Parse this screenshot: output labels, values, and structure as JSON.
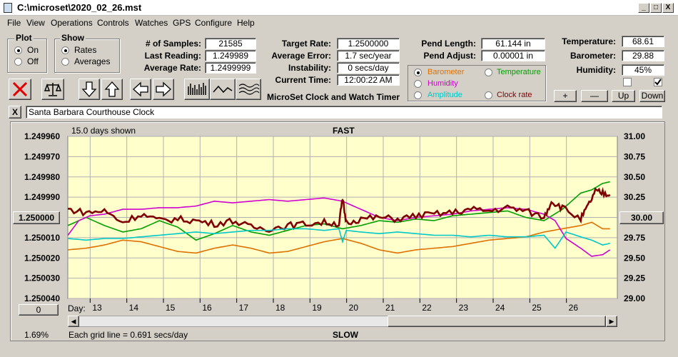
{
  "window": {
    "title": "C:\\microset\\2020_02_26.mst",
    "min_label": "_",
    "max_label": "□",
    "close_label": "X"
  },
  "menu": [
    "File",
    "View",
    "Operations",
    "Controls",
    "Watches",
    "GPS",
    "Configure",
    "Help"
  ],
  "plot_group": {
    "label": "Plot",
    "options": [
      "On",
      "Off"
    ],
    "selected": "On"
  },
  "show_group": {
    "label": "Show",
    "options": [
      "Rates",
      "Averages"
    ],
    "selected": "Rates"
  },
  "stats": {
    "samples_label": "# of Samples:",
    "samples": "21585",
    "last_reading_label": "Last Reading:",
    "last_reading": "1.249989",
    "average_rate_label": "Average Rate:",
    "average_rate": "1.2499999",
    "target_rate_label": "Target Rate:",
    "target_rate": "1.2500000",
    "average_error_label": "Average Error:",
    "average_error": "1.7 sec/year",
    "instability_label": "Instability:",
    "instability": "0 secs/day",
    "current_time_label": "Current Time:",
    "current_time": "12:00:22 AM",
    "pend_length_label": "Pend Length:",
    "pend_length": "61.144 in",
    "pend_adjust_label": "Pend Adjust:",
    "pend_adjust": "0.00001 in",
    "temperature_label": "Temperature:",
    "temperature": "68.61",
    "barometer_label": "Barometer:",
    "barometer": "29.88",
    "humidity_label": "Humidity:",
    "humidity": "45%"
  },
  "app_caption": "MicroSet Clock and Watch Timer",
  "series_selector": {
    "options": [
      {
        "label": "Barometer",
        "color": "#e07000",
        "selected": true
      },
      {
        "label": "Temperature",
        "color": "#00a000",
        "selected": false
      },
      {
        "label": "Humidity",
        "color": "#d000d0",
        "selected": false
      },
      {
        "label": "Clock rate",
        "color": "#800000",
        "selected": false
      },
      {
        "label": "Amplitude",
        "color": "#00c8c8",
        "selected": false
      }
    ]
  },
  "scale_buttons": {
    "plus": "+",
    "minus": "—",
    "up": "Up",
    "down": "Down"
  },
  "checkboxes": [
    {
      "checked": false
    },
    {
      "checked": true
    }
  ],
  "watch_name": {
    "clear_label": "X",
    "value": "Santa Barbara Courthouse Clock"
  },
  "toolbar_icons": [
    "close-icon",
    "balance-icon",
    "arrow-down-icon",
    "arrow-up-icon",
    "arrow-left-icon",
    "arrow-right-icon",
    "bar-graph-icon",
    "wave-icon",
    "multi-wave-icon"
  ],
  "plot": {
    "days_shown": "15.0 days shown",
    "top_label": "FAST",
    "bottom_label": "SLOW",
    "left_center_value": "1.250000",
    "right_center_value": "30.00",
    "left_bottom_button": "0",
    "bottom_left_readout": "1.69%",
    "grid_note": "Each grid line = 0.691 secs/day",
    "day_label": "Day:"
  },
  "chart_data": {
    "type": "line",
    "y_left_ticks": [
      "1.249960",
      "1.249970",
      "1.249980",
      "1.249990",
      "",
      "1.250010",
      "1.250020",
      "1.250030",
      "1.250040"
    ],
    "y_right_ticks": [
      "31.00",
      "30.75",
      "30.50",
      "30.25",
      "",
      "29.75",
      "29.50",
      "29.25",
      "29.00"
    ],
    "x_ticks": [
      "13",
      "14",
      "15",
      "16",
      "17",
      "18",
      "19",
      "20",
      "21",
      "22",
      "23",
      "24",
      "25",
      "26"
    ],
    "xlim": [
      12,
      27
    ],
    "ylim_left": [
      1.24996,
      1.25004
    ],
    "ylim_right": [
      29.0,
      31.0
    ],
    "grid": true,
    "series": [
      {
        "color": "#e07000",
        "x": [
          12,
          12.5,
          13,
          13.5,
          14,
          14.5,
          15,
          15.5,
          16,
          16.5,
          17,
          17.5,
          18,
          18.5,
          19,
          19.5,
          20,
          20.5,
          21,
          21.5,
          22,
          22.5,
          23,
          23.5,
          24,
          24.5,
          25,
          25.5,
          26,
          26.3,
          26.6,
          26.8
        ],
        "y": [
          29.6,
          29.62,
          29.66,
          29.72,
          29.7,
          29.64,
          29.58,
          29.56,
          29.62,
          29.66,
          29.62,
          29.56,
          29.58,
          29.64,
          29.7,
          29.74,
          29.68,
          29.6,
          29.56,
          29.6,
          29.62,
          29.64,
          29.68,
          29.72,
          29.74,
          29.76,
          29.82,
          29.86,
          29.9,
          29.94,
          29.86,
          29.86
        ]
      },
      {
        "color": "#00a000",
        "x": [
          12,
          12.5,
          13,
          13.5,
          14,
          14.5,
          15,
          15.5,
          16,
          16.5,
          17,
          17.5,
          18,
          18.5,
          19,
          19.5,
          20,
          20.5,
          21,
          21.5,
          22,
          22.5,
          23,
          23.5,
          24,
          24.5,
          25,
          25.5,
          26,
          26.3,
          26.6,
          26.8
        ],
        "y": [
          29.9,
          30.0,
          29.9,
          29.82,
          29.86,
          29.96,
          29.88,
          29.72,
          29.8,
          29.9,
          29.82,
          29.78,
          29.84,
          29.9,
          29.92,
          29.86,
          29.9,
          29.96,
          29.94,
          29.98,
          29.96,
          30.02,
          30.04,
          30.06,
          30.08,
          30.0,
          29.96,
          30.1,
          30.3,
          30.34,
          30.42,
          30.44
        ]
      },
      {
        "color": "#d000d0",
        "x": [
          12,
          12.3,
          12.6,
          13,
          13.5,
          14,
          14.5,
          15,
          15.5,
          16,
          16.5,
          17,
          17.5,
          18,
          18.5,
          19,
          19.5,
          20,
          20.5,
          21,
          21.5,
          22,
          22.5,
          23,
          23.5,
          24,
          24.5,
          25,
          25.3,
          25.6,
          26,
          26.3,
          26.6,
          26.8
        ],
        "y": [
          29.78,
          29.96,
          30.02,
          30.04,
          30.1,
          30.1,
          30.12,
          30.12,
          30.14,
          30.2,
          30.18,
          30.2,
          30.22,
          30.2,
          30.22,
          30.24,
          30.2,
          30.1,
          30.0,
          29.96,
          30.0,
          30.02,
          30.04,
          30.08,
          30.1,
          30.12,
          30.1,
          30.04,
          29.96,
          29.74,
          29.62,
          29.52,
          29.54,
          29.6
        ]
      },
      {
        "color": "#800000",
        "x": [
          12,
          12.5,
          13,
          13.5,
          14,
          14.5,
          15,
          15.5,
          16,
          16.5,
          17,
          17.5,
          18,
          18.5,
          19,
          19.4,
          19.5,
          19.6,
          20,
          20.5,
          21,
          21.5,
          22,
          22.5,
          23,
          23.5,
          24,
          24.5,
          25,
          25.2,
          25.5,
          26,
          26.2,
          26.4,
          26.6,
          26.8
        ],
        "y": [
          30.1,
          30.06,
          30.08,
          29.94,
          30.04,
          29.96,
          29.98,
          29.96,
          29.92,
          29.96,
          29.88,
          29.86,
          29.9,
          29.92,
          29.94,
          29.92,
          30.22,
          29.94,
          29.98,
          30.0,
          29.98,
          30.02,
          30.04,
          30.06,
          30.1,
          30.08,
          30.12,
          30.08,
          30.0,
          30.2,
          30.12,
          29.98,
          30.14,
          30.32,
          30.3,
          30.28
        ]
      },
      {
        "color": "#00c8c8",
        "x": [
          12,
          12.5,
          13,
          13.5,
          14,
          14.5,
          15,
          15.5,
          16,
          16.5,
          17,
          17.5,
          18,
          18.5,
          19,
          19.4,
          19.5,
          19.6,
          20,
          20.5,
          21,
          21.5,
          22,
          22.5,
          23,
          23.5,
          24,
          24.5,
          25,
          25.3,
          25.6,
          26,
          26.3,
          26.6,
          26.8
        ],
        "y": [
          29.74,
          29.72,
          29.74,
          29.74,
          29.76,
          29.78,
          29.8,
          29.82,
          29.8,
          29.82,
          29.84,
          29.84,
          29.86,
          29.86,
          29.84,
          29.86,
          29.7,
          29.84,
          29.82,
          29.8,
          29.82,
          29.8,
          29.78,
          29.78,
          29.76,
          29.78,
          29.76,
          29.76,
          29.78,
          29.62,
          29.82,
          29.76,
          29.72,
          29.66,
          29.68
        ]
      }
    ]
  }
}
